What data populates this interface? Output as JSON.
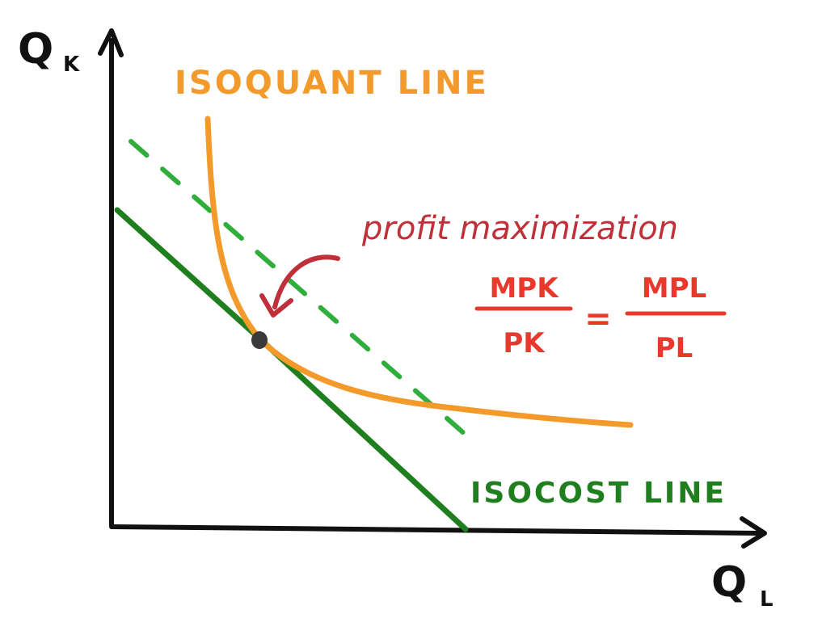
{
  "axes": {
    "y_label_main": "Q",
    "y_label_sub": "K",
    "x_label_main": "Q",
    "x_label_sub": "L"
  },
  "labels": {
    "isoquant": "ISOQUANT LINE",
    "isocost": "ISOCOST LINE",
    "annotation": "profit maximization"
  },
  "formula": {
    "left_numerator": "MPK",
    "left_denominator": "PK",
    "equals": "=",
    "right_numerator": "MPL",
    "right_denominator": "PL"
  },
  "colors": {
    "axis": "#111111",
    "isoquant": "#f39a2b",
    "isocost": "#1f7f1f",
    "dashed_isocost": "#2fae3c",
    "annotation": "#c0303b",
    "formula": "#e8392c",
    "optimum_point": "#3a3a3a"
  }
}
